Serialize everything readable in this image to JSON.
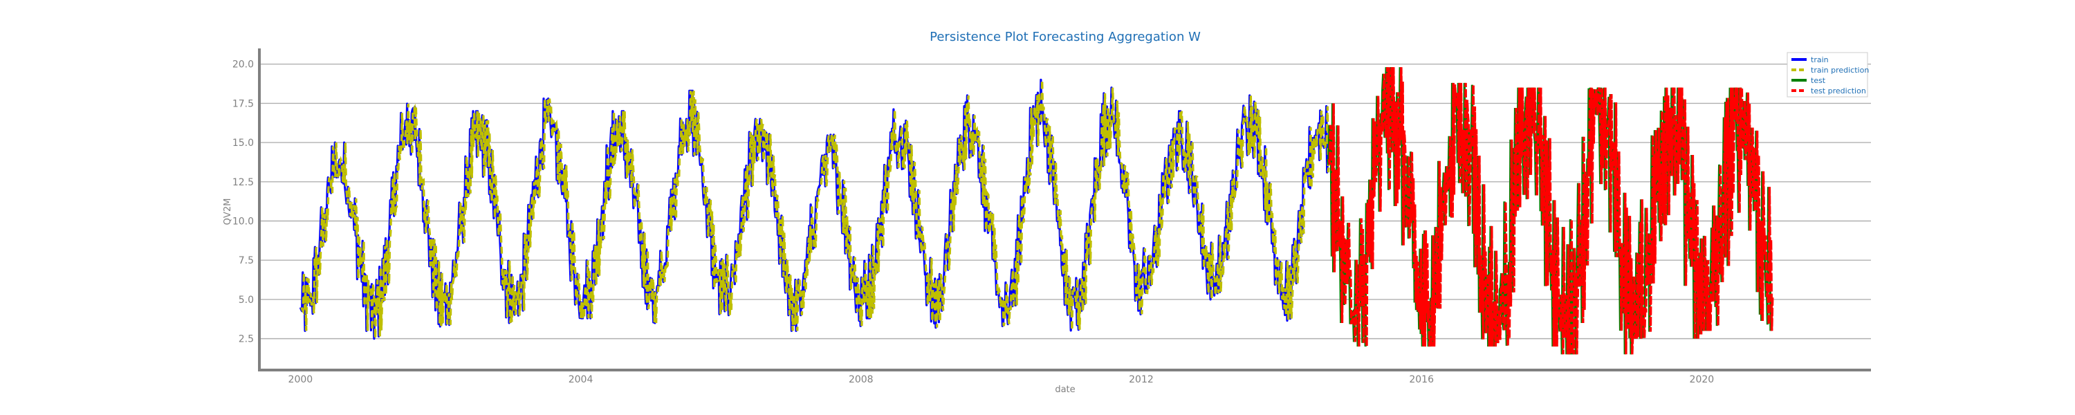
{
  "chart_data": {
    "type": "line",
    "title": "Persistence Plot Forecasting Aggregation W",
    "xlabel": "date",
    "ylabel": "QV2M",
    "xlim": [
      "1999-06-01",
      "2022-06-01"
    ],
    "ylim": [
      0.5,
      21.0
    ],
    "x_ticks": [
      "2000",
      "2004",
      "2008",
      "2012",
      "2016",
      "2020"
    ],
    "y_ticks": [
      "2.5",
      "5.0",
      "7.5",
      "10.0",
      "12.5",
      "15.0",
      "17.5",
      "20.0"
    ],
    "grid": "horizontal",
    "legend_position": "top-right",
    "colors": {
      "train": "#0000ff",
      "train_prediction": "#bfbf00",
      "test": "#008000",
      "test_prediction": "#ff0000",
      "title": "#1f6fb5",
      "legend_text": "#1f6fb5",
      "grid": "#b0b0b0",
      "spine": "#808080"
    },
    "train_period": [
      "2000-01-01",
      "2014-09-01"
    ],
    "test_period": [
      "2014-09-01",
      "2020-12-31"
    ],
    "annual_series": {
      "years": [
        2000,
        2001,
        2002,
        2003,
        2004,
        2005,
        2006,
        2007,
        2008,
        2009,
        2010,
        2011,
        2012,
        2013,
        2014,
        2015,
        2016,
        2017,
        2018,
        2019,
        2020
      ],
      "summer_peak": [
        15.0,
        18.0,
        17.0,
        17.8,
        17.0,
        18.3,
        16.5,
        15.5,
        17.3,
        18.0,
        19.0,
        18.5,
        17.0,
        18.0,
        17.5,
        19.8,
        18.8,
        18.5,
        18.5,
        18.5,
        18.5
      ],
      "winter_low": [
        3.0,
        2.5,
        3.2,
        3.2,
        3.8,
        3.5,
        4.0,
        3.0,
        3.8,
        3.2,
        2.0,
        3.0,
        5.0,
        5.0,
        3.5,
        2.0,
        2.0,
        2.0,
        1.5,
        2.5,
        3.0
      ]
    },
    "series": [
      {
        "name": "train",
        "style": "solid"
      },
      {
        "name": "train prediction",
        "style": "dashed"
      },
      {
        "name": "test",
        "style": "solid"
      },
      {
        "name": "test prediction",
        "style": "dashed"
      }
    ]
  }
}
